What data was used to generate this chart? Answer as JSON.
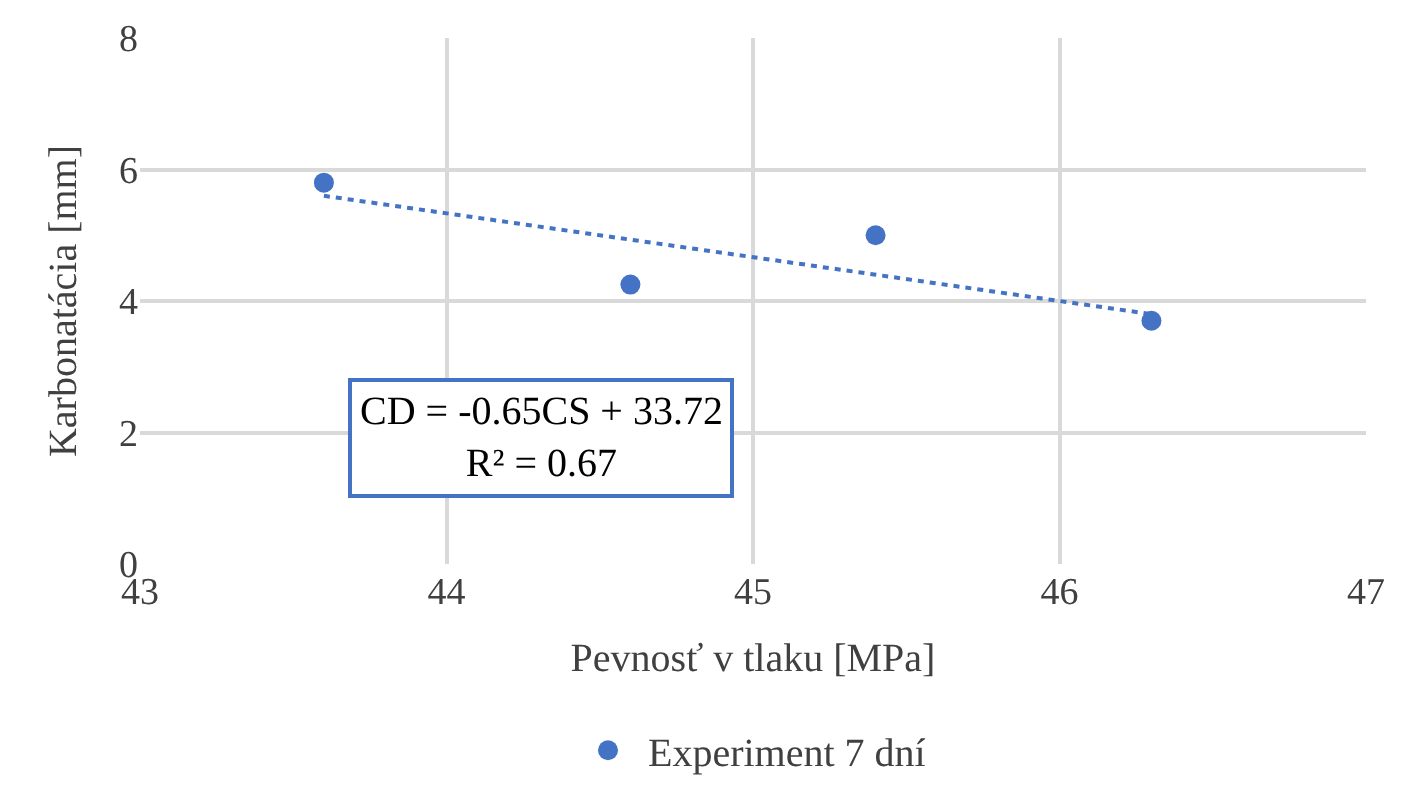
{
  "chart_data": {
    "type": "scatter",
    "xlabel": "Pevnosť v tlaku [MPa]",
    "ylabel": "Karbonatácia [mm]",
    "series": [
      {
        "name": "Experiment 7 dní",
        "color": "#4472c4",
        "x": [
          43.6,
          44.6,
          45.4,
          46.3
        ],
        "values": [
          5.8,
          4.25,
          5.0,
          3.7
        ]
      },
      {
        "type": "line",
        "color": "#4472c4",
        "line_style": "dotted",
        "marker": "none",
        "x": [
          43.6,
          46.3
        ],
        "values": [
          5.6,
          3.8
        ]
      }
    ],
    "xlim": [
      43,
      47
    ],
    "xticks": [
      43,
      44,
      45,
      46,
      47
    ],
    "ylim": [
      0,
      8
    ],
    "yticks": [
      0,
      2,
      4,
      6,
      8
    ],
    "grid": true,
    "legend": "bottom",
    "marker": "circle",
    "annotations": [
      "CD = -0.65CS + 33.72\nR² = 0.67"
    ]
  }
}
